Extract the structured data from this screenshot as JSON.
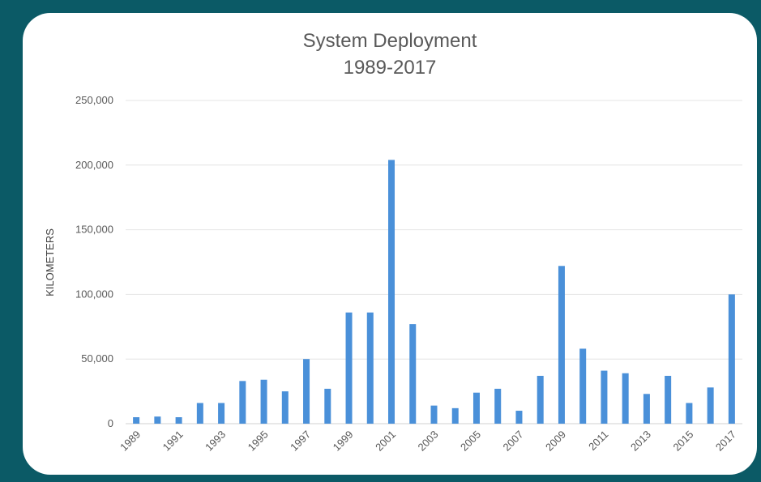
{
  "chart_data": {
    "type": "bar",
    "title": "System Deployment",
    "subtitle": "1989-2017",
    "xlabel": "",
    "ylabel": "KILOMETERS",
    "ylim": [
      0,
      250000
    ],
    "yticks": [
      0,
      50000,
      100000,
      150000,
      200000,
      250000
    ],
    "ytick_labels": [
      "0",
      "50,000",
      "100,000",
      "150,000",
      "200,000",
      "250,000"
    ],
    "grid": true,
    "legend": "none",
    "bar_color": "#4a90d9",
    "categories": [
      "1989",
      "1990",
      "1991",
      "1992",
      "1993",
      "1994",
      "1995",
      "1996",
      "1997",
      "1998",
      "1999",
      "2000",
      "2001",
      "2002",
      "2003",
      "2004",
      "2005",
      "2006",
      "2007",
      "2008",
      "2009",
      "2010",
      "2011",
      "2012",
      "2013",
      "2014",
      "2015",
      "2016",
      "2017"
    ],
    "xtick_labels": [
      "1989",
      "1991",
      "1993",
      "1995",
      "1997",
      "1999",
      "2001",
      "2003",
      "2005",
      "2007",
      "2009",
      "2011",
      "2013",
      "2015",
      "2017"
    ],
    "values": [
      5000,
      5500,
      5000,
      16000,
      16000,
      33000,
      34000,
      25000,
      50000,
      27000,
      86000,
      86000,
      204000,
      77000,
      14000,
      12000,
      24000,
      27000,
      10000,
      37000,
      122000,
      58000,
      41000,
      39000,
      23000,
      37000,
      16000,
      28000,
      100000
    ]
  }
}
